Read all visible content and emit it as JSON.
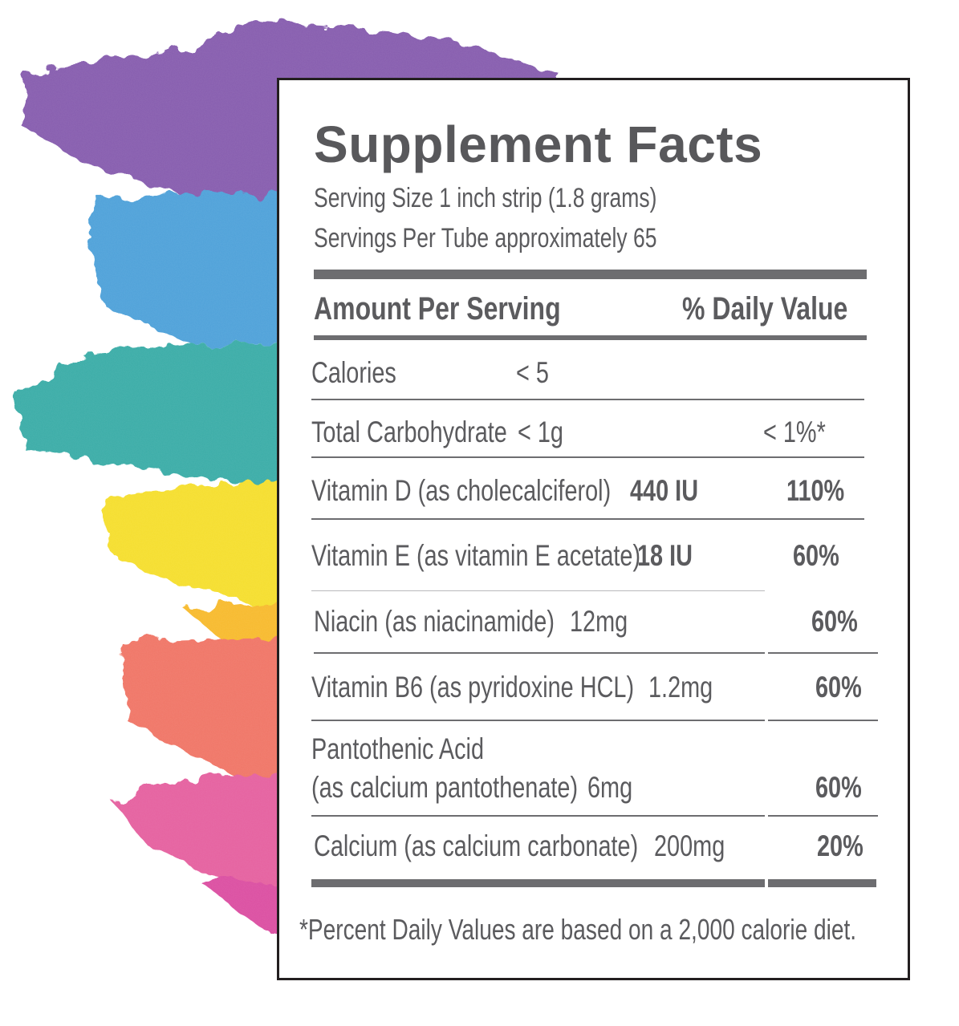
{
  "label": {
    "title": "Supplement Facts",
    "serving_size": "Serving Size 1 inch strip (1.8 grams)",
    "servings_per": "Servings Per Tube approximately 65",
    "header_left": "Amount Per Serving",
    "header_right": "% Daily Value",
    "rows": [
      {
        "name": "Calories",
        "amount": "< 5",
        "dv": ""
      },
      {
        "name": "Total Carbohydrate",
        "amount": "< 1g",
        "dv": "< 1%*"
      },
      {
        "name": "Vitamin D (as cholecalciferol)",
        "amount": "440 IU",
        "dv": "110%"
      },
      {
        "name": "Vitamin E (as vitamin E acetate)",
        "amount": "18 IU",
        "dv": "60%"
      },
      {
        "name": "Niacin (as niacinamide)",
        "amount": "12mg",
        "dv": "60%"
      },
      {
        "name": "Vitamin B6 (as pyridoxine HCL)",
        "amount": "1.2mg",
        "dv": "60%"
      },
      {
        "name": "Pantothenic Acid",
        "name_line2": "(as calcium pantothenate)",
        "amount": "6mg",
        "dv": "60%"
      },
      {
        "name": "Calcium (as calcium carbonate)",
        "amount": "200mg",
        "dv": "20%"
      }
    ],
    "footnote": "*Percent Daily Values are based on a 2,000 calorie diet."
  },
  "colors": {
    "border": "#231f20",
    "text": "#58585b",
    "rules": "#6d6d70",
    "paint": [
      "#7b4fa8",
      "#3f9ad6",
      "#2aa6a0",
      "#f5dc1c",
      "#f7b51a",
      "#ef6b5a",
      "#e35397",
      "#d9409a"
    ]
  }
}
